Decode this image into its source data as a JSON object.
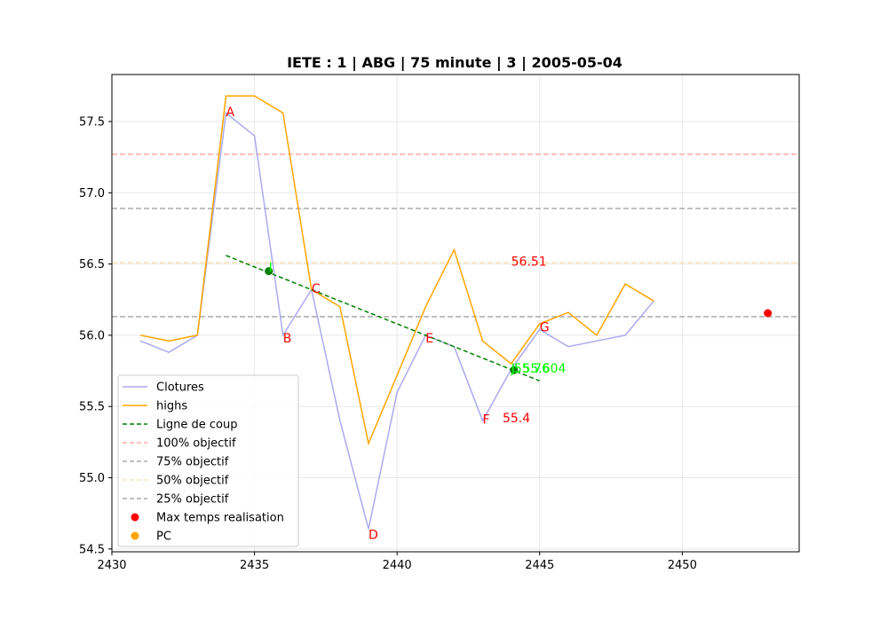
{
  "chart_data": {
    "type": "line",
    "title": "IETE : 1 | ABG | 75 minute | 3 | 2005-05-04",
    "xlabel": "",
    "ylabel": "",
    "xlim": [
      2430,
      2454.1
    ],
    "ylim": [
      54.48,
      57.83
    ],
    "x_ticks": [
      2430,
      2435,
      2440,
      2445,
      2450
    ],
    "y_ticks": [
      54.5,
      55.0,
      55.5,
      56.0,
      56.5,
      57.0,
      57.5
    ],
    "grid": true,
    "legend_position": "lower left",
    "colors": {
      "clotures": "#aaaaee",
      "highs": "#ffa500",
      "ligne": "#008000",
      "obj100": "#ffaaaa",
      "obj75": "#aaaaaa",
      "obj50": "#ffe4b5",
      "obj25": "#aaaaaa",
      "max": "#ff0000",
      "pc": "#ffa500",
      "label_red": "#ff0000",
      "label_green": "#00ff00"
    },
    "series": [
      {
        "name": "Clotures",
        "style": "line",
        "x": [
          2431,
          2432,
          2433,
          2434,
          2435,
          2436,
          2437,
          2438,
          2439,
          2440,
          2441,
          2442,
          2443,
          2444,
          2445,
          2446,
          2447,
          2448,
          2449
        ],
        "y": [
          55.96,
          55.88,
          56.0,
          57.56,
          57.4,
          56.0,
          56.32,
          55.4,
          54.64,
          55.6,
          56.0,
          55.92,
          55.4,
          55.76,
          56.04,
          55.92,
          55.96,
          56.0,
          56.24
        ]
      },
      {
        "name": "highs",
        "style": "line",
        "x": [
          2431,
          2432,
          2433,
          2434,
          2435,
          2436,
          2437,
          2438,
          2439,
          2440,
          2441,
          2442,
          2443,
          2444,
          2445,
          2446,
          2447,
          2448,
          2449
        ],
        "y": [
          56.0,
          55.96,
          56.0,
          57.68,
          57.68,
          57.56,
          56.32,
          56.2,
          55.24,
          55.72,
          56.2,
          56.6,
          55.96,
          55.8,
          56.08,
          56.16,
          56.0,
          56.36,
          56.24
        ]
      },
      {
        "name": "Ligne de coup",
        "style": "dashed",
        "x": [
          2434,
          2445
        ],
        "y": [
          56.56,
          55.68
        ]
      }
    ],
    "hlines": [
      {
        "name": "100% objectif",
        "y": 57.27,
        "color_key": "obj100"
      },
      {
        "name": "75% objectif",
        "y": 56.89,
        "color_key": "obj75"
      },
      {
        "name": "50% objectif",
        "y": 56.51,
        "color_key": "obj50"
      },
      {
        "name": "25% objectif",
        "y": 56.13,
        "color_key": "obj25"
      }
    ],
    "markers": [
      {
        "x": 2435.5,
        "y": 56.45,
        "color_key": "ligne"
      },
      {
        "x": 2444.1,
        "y": 55.755,
        "color_key": "ligne"
      },
      {
        "x": 2453,
        "y": 56.155,
        "color_key": "max"
      }
    ],
    "annotations": [
      {
        "text": "A",
        "x": 2434.0,
        "y": 57.57,
        "color_key": "label_red"
      },
      {
        "text": "B",
        "x": 2436.0,
        "y": 55.98,
        "color_key": "label_red"
      },
      {
        "text": "C",
        "x": 2437.0,
        "y": 56.33,
        "color_key": "label_red"
      },
      {
        "text": "D",
        "x": 2439.0,
        "y": 54.6,
        "color_key": "label_red"
      },
      {
        "text": "E",
        "x": 2441.0,
        "y": 55.98,
        "color_key": "label_red"
      },
      {
        "text": "F",
        "x": 2443.0,
        "y": 55.41,
        "color_key": "label_red"
      },
      {
        "text": "G",
        "x": 2445.0,
        "y": 56.06,
        "color_key": "label_red"
      },
      {
        "text": "56.51",
        "x": 2444.0,
        "y": 56.52,
        "color_key": "label_red"
      },
      {
        "text": "55.4",
        "x": 2443.7,
        "y": 55.42,
        "color_key": "label_red"
      },
      {
        "text": "I",
        "x": 2435.5,
        "y": 56.48,
        "color_key": "label_green"
      },
      {
        "text": "J",
        "x": 2444.0,
        "y": 55.77,
        "color_key": "label_green"
      },
      {
        "text": "55.76",
        "x": 2444.1,
        "y": 55.77,
        "color_key": "label_green"
      },
      {
        "text": "55.604",
        "x": 2444.4,
        "y": 55.77,
        "color_key": "label_green"
      }
    ],
    "legend": [
      {
        "label": "Clotures",
        "kind": "line",
        "color_key": "clotures"
      },
      {
        "label": "highs",
        "kind": "line",
        "color_key": "highs"
      },
      {
        "label": "Ligne de coup",
        "kind": "dashed",
        "color_key": "ligne"
      },
      {
        "label": "100% objectif",
        "kind": "dashed",
        "color_key": "obj100"
      },
      {
        "label": "75% objectif",
        "kind": "dashed",
        "color_key": "obj75"
      },
      {
        "label": "50% objectif",
        "kind": "dashed",
        "color_key": "obj50"
      },
      {
        "label": "25% objectif",
        "kind": "dashed",
        "color_key": "obj25"
      },
      {
        "label": "Max temps realisation",
        "kind": "dot",
        "color_key": "max"
      },
      {
        "label": "PC",
        "kind": "dot",
        "color_key": "pc"
      }
    ]
  }
}
